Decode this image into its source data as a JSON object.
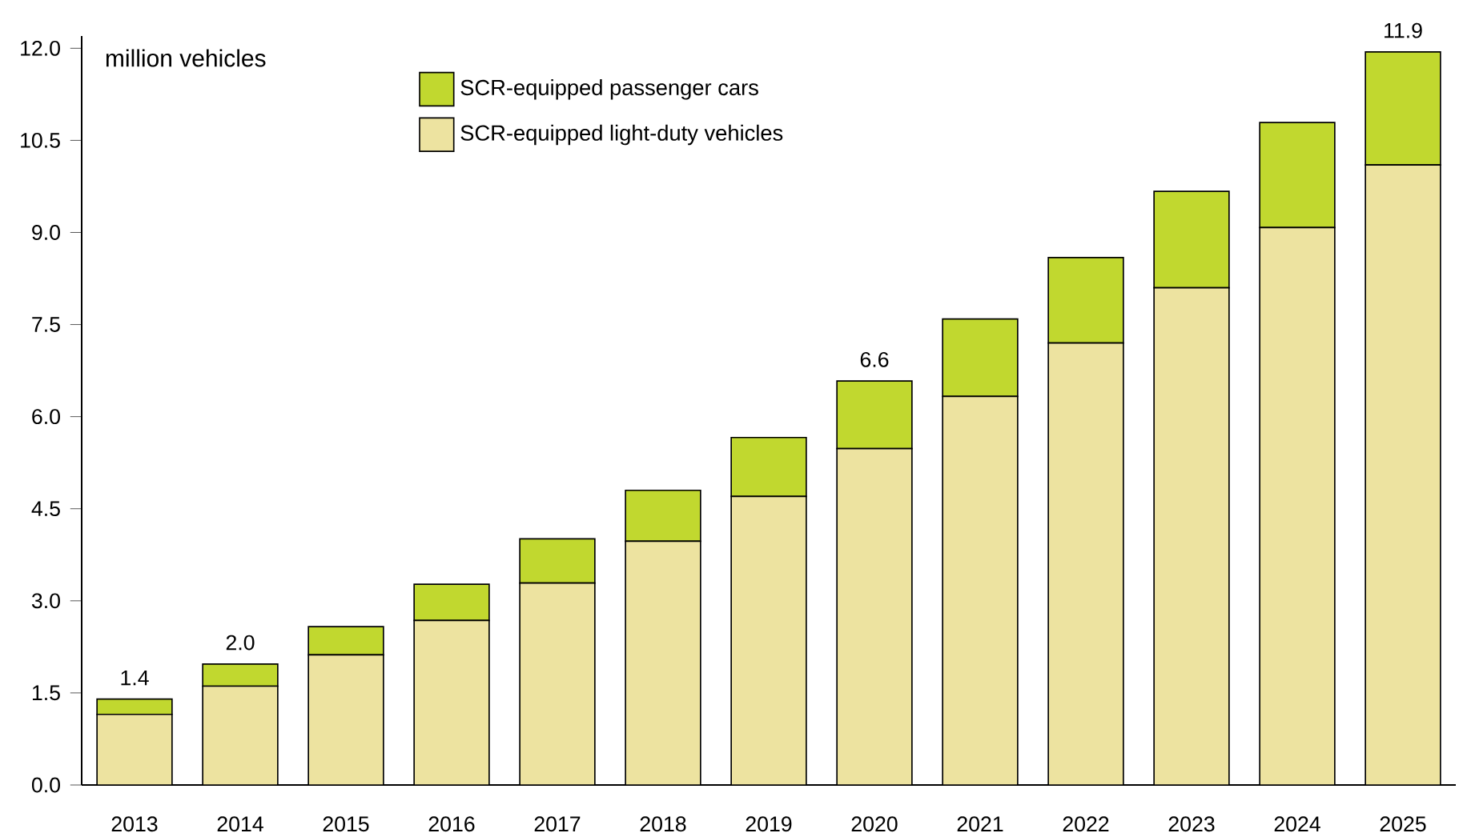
{
  "chart_data": {
    "type": "bar",
    "stacked": true,
    "ylabel": "million vehicles",
    "categories": [
      "2013",
      "2014",
      "2015",
      "2016",
      "2017",
      "2018",
      "2019",
      "2020",
      "2021",
      "2022",
      "2023",
      "2024",
      "2025"
    ],
    "series": [
      {
        "name": "SCR-equipped light-duty vehicles",
        "color": "#ede3a0",
        "values": [
          1.15,
          1.61,
          2.12,
          2.68,
          3.29,
          3.97,
          4.7,
          5.48,
          6.33,
          7.2,
          8.1,
          9.08,
          10.1
        ]
      },
      {
        "name": "SCR-equipped passenger cars",
        "color": "#c1d82f",
        "values": [
          0.25,
          0.36,
          0.46,
          0.59,
          0.72,
          0.83,
          0.96,
          1.1,
          1.26,
          1.39,
          1.57,
          1.71,
          1.84
        ]
      }
    ],
    "totals": [
      "1.4",
      "2.0",
      null,
      null,
      null,
      null,
      null,
      "6.6",
      null,
      null,
      null,
      null,
      "11.9"
    ],
    "ylim": [
      0,
      12.2
    ],
    "yticks": [
      {
        "value": 0,
        "label": "0.0"
      },
      {
        "value": 1.5,
        "label": "1.5"
      },
      {
        "value": 3,
        "label": "3.0"
      },
      {
        "value": 4.5,
        "label": "4.5"
      },
      {
        "value": 6,
        "label": "6.0"
      },
      {
        "value": 7.5,
        "label": "7.5"
      },
      {
        "value": 9,
        "label": "9.0"
      },
      {
        "value": 10.5,
        "label": "10.5"
      },
      {
        "value": 12,
        "label": "12.0"
      }
    ],
    "legend": "top"
  }
}
